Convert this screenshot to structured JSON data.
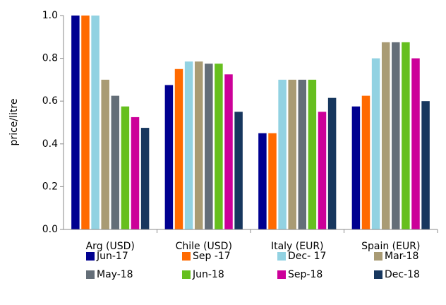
{
  "chart_data": {
    "type": "bar",
    "ylabel": "price/litre",
    "categories": [
      "Arg (USD)",
      "Chile (USD)",
      "Italy (EUR)",
      "Spain (EUR)"
    ],
    "series": [
      {
        "name": "Jun-17",
        "color": "#000090",
        "values": [
          1.0,
          0.675,
          0.45,
          0.575
        ]
      },
      {
        "name": "Sep -17",
        "color": "#ff6a00",
        "values": [
          1.0,
          0.75,
          0.45,
          0.625
        ]
      },
      {
        "name": "Dec- 17",
        "color": "#92d2e2",
        "values": [
          1.0,
          0.785,
          0.7,
          0.8
        ]
      },
      {
        "name": "Mar-18",
        "color": "#a99b74",
        "values": [
          0.7,
          0.785,
          0.7,
          0.875
        ]
      },
      {
        "name": "May-18",
        "color": "#646e78",
        "values": [
          0.625,
          0.775,
          0.7,
          0.875
        ]
      },
      {
        "name": "Jun-18",
        "color": "#66bf1e",
        "values": [
          0.575,
          0.775,
          0.7,
          0.875
        ]
      },
      {
        "name": "Sep-18",
        "color": "#cc0099",
        "values": [
          0.525,
          0.725,
          0.55,
          0.8
        ]
      },
      {
        "name": "Dec-18",
        "color": "#17375e",
        "values": [
          0.475,
          0.55,
          0.615,
          0.6
        ]
      }
    ],
    "ylim": [
      0,
      1.0
    ],
    "yticks": [
      {
        "value": 0,
        "label": "0.0"
      },
      0.2,
      0.4,
      0.6,
      0.8,
      {
        "value": 1.0,
        "label": "1.0"
      }
    ],
    "legend": "bottom"
  }
}
